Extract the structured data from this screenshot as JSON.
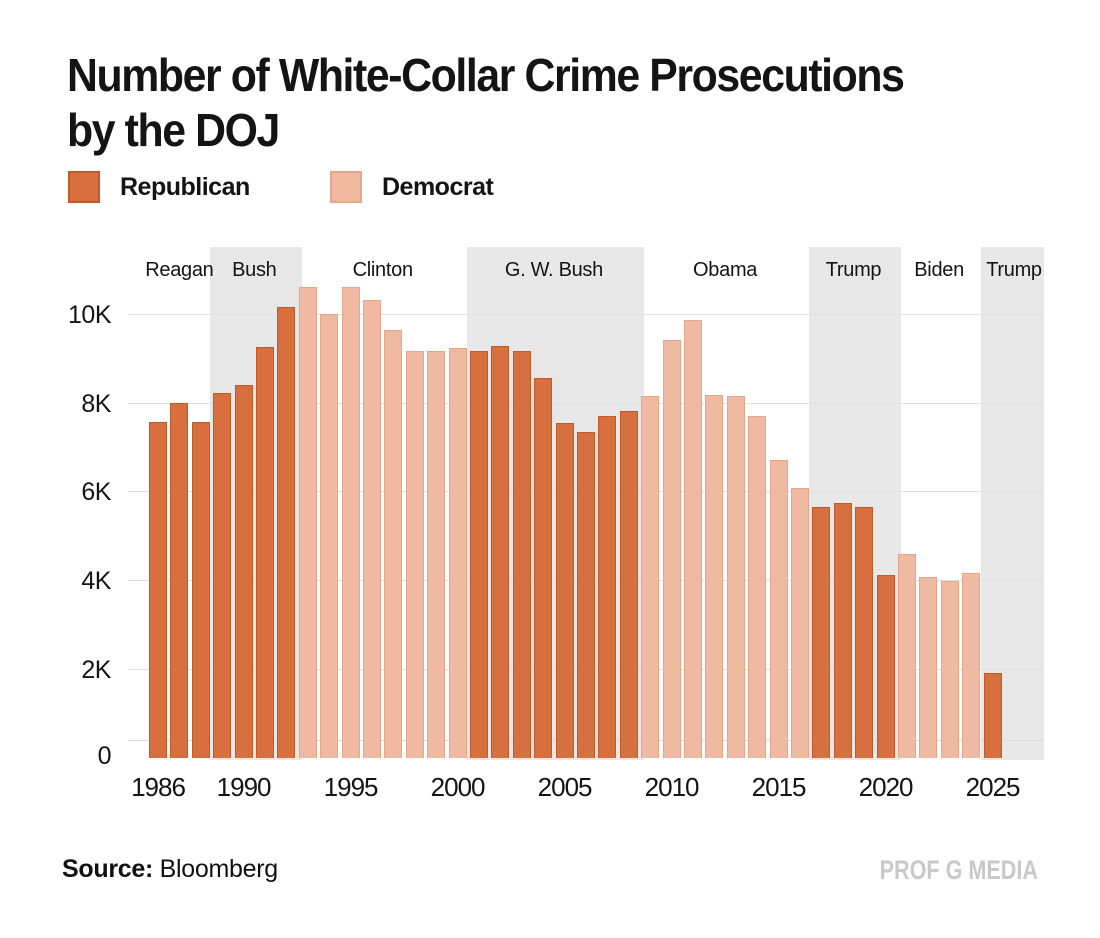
{
  "title": {
    "line1": "Number of White-Collar Crime Prosecutions",
    "line2": "by the DOJ"
  },
  "legend": {
    "republican_label": "Republican",
    "democrat_label": "Democrat"
  },
  "colors": {
    "republican": "#D7703E",
    "republican_border": "#C05A2B",
    "democrat": "#F0B9A2",
    "democrat_border": "#E5A78C",
    "shaded_band": "#E8E8E8",
    "gridline": "#E1E1E1",
    "baseline_gridline": "#DCDCDC",
    "text": "#141414",
    "watermark": "#C9C9C9"
  },
  "footer": {
    "source_label": "Source:",
    "source_value": "Bloomberg",
    "watermark": "PROF G MEDIA"
  },
  "chart_data": {
    "type": "bar",
    "title": "Number of White-Collar Crime Prosecutions by the DOJ",
    "xlabel": "",
    "ylabel": "",
    "ylim": [
      0,
      11000
    ],
    "grid": true,
    "legend_position": "top-left",
    "y_ticks": [
      {
        "label": "0",
        "value": 0
      },
      {
        "label": "2K",
        "value": 2000
      },
      {
        "label": "4K",
        "value": 4000
      },
      {
        "label": "6K",
        "value": 6000
      },
      {
        "label": "8K",
        "value": 8000
      },
      {
        "label": "10K",
        "value": 10000
      }
    ],
    "x_ticks": [
      1986,
      1990,
      1995,
      2000,
      2005,
      2010,
      2015,
      2020,
      2025
    ],
    "eras": [
      {
        "label": "Reagan",
        "party": "R",
        "start": 1986,
        "end": 1988,
        "shaded": false
      },
      {
        "label": "Bush",
        "party": "R",
        "start": 1989,
        "end": 1992,
        "shaded": true
      },
      {
        "label": "Clinton",
        "party": "D",
        "start": 1993,
        "end": 2000,
        "shaded": false
      },
      {
        "label": "G. W. Bush",
        "party": "R",
        "start": 2001,
        "end": 2008,
        "shaded": true
      },
      {
        "label": "Obama",
        "party": "D",
        "start": 2009,
        "end": 2016,
        "shaded": false
      },
      {
        "label": "Trump",
        "party": "R",
        "start": 2017,
        "end": 2020,
        "shaded": true
      },
      {
        "label": "Biden",
        "party": "D",
        "start": 2021,
        "end": 2024,
        "shaded": false
      },
      {
        "label": "Trump",
        "party": "R",
        "start": 2025,
        "end": 2027,
        "shaded": true
      }
    ],
    "bars": [
      {
        "year": 1986,
        "value": 7560,
        "party": "R"
      },
      {
        "year": 1987,
        "value": 8000,
        "party": "R"
      },
      {
        "year": 1988,
        "value": 7560,
        "party": "R"
      },
      {
        "year": 1989,
        "value": 8220,
        "party": "R"
      },
      {
        "year": 1990,
        "value": 8400,
        "party": "R"
      },
      {
        "year": 1991,
        "value": 9250,
        "party": "R"
      },
      {
        "year": 1992,
        "value": 10160,
        "party": "R"
      },
      {
        "year": 1993,
        "value": 10600,
        "party": "D"
      },
      {
        "year": 1994,
        "value": 10000,
        "party": "D"
      },
      {
        "year": 1995,
        "value": 10600,
        "party": "D"
      },
      {
        "year": 1996,
        "value": 10300,
        "party": "D"
      },
      {
        "year": 1997,
        "value": 9630,
        "party": "D"
      },
      {
        "year": 1998,
        "value": 9160,
        "party": "D"
      },
      {
        "year": 1999,
        "value": 9160,
        "party": "D"
      },
      {
        "year": 2000,
        "value": 9240,
        "party": "D"
      },
      {
        "year": 2001,
        "value": 9170,
        "party": "R"
      },
      {
        "year": 2002,
        "value": 9280,
        "party": "R"
      },
      {
        "year": 2003,
        "value": 9170,
        "party": "R"
      },
      {
        "year": 2004,
        "value": 8560,
        "party": "R"
      },
      {
        "year": 2005,
        "value": 7550,
        "party": "R"
      },
      {
        "year": 2006,
        "value": 7350,
        "party": "R"
      },
      {
        "year": 2007,
        "value": 7690,
        "party": "R"
      },
      {
        "year": 2008,
        "value": 7810,
        "party": "R"
      },
      {
        "year": 2009,
        "value": 8150,
        "party": "D"
      },
      {
        "year": 2010,
        "value": 9420,
        "party": "D"
      },
      {
        "year": 2011,
        "value": 9850,
        "party": "D"
      },
      {
        "year": 2012,
        "value": 8170,
        "party": "D"
      },
      {
        "year": 2013,
        "value": 8150,
        "party": "D"
      },
      {
        "year": 2014,
        "value": 7700,
        "party": "D"
      },
      {
        "year": 2015,
        "value": 6710,
        "party": "D"
      },
      {
        "year": 2016,
        "value": 6080,
        "party": "D"
      },
      {
        "year": 2017,
        "value": 5640,
        "party": "R"
      },
      {
        "year": 2018,
        "value": 5750,
        "party": "R"
      },
      {
        "year": 2019,
        "value": 5640,
        "party": "R"
      },
      {
        "year": 2020,
        "value": 4120,
        "party": "R"
      },
      {
        "year": 2021,
        "value": 4590,
        "party": "D"
      },
      {
        "year": 2022,
        "value": 4080,
        "party": "D"
      },
      {
        "year": 2023,
        "value": 3990,
        "party": "D"
      },
      {
        "year": 2024,
        "value": 4170,
        "party": "D"
      },
      {
        "year": 2025,
        "value": 1910,
        "party": "R"
      }
    ]
  }
}
